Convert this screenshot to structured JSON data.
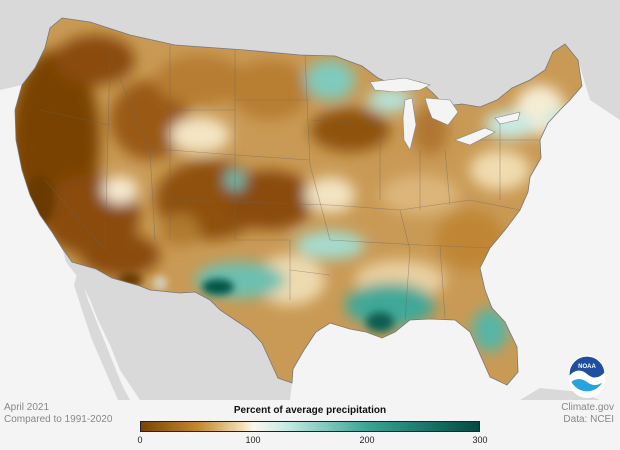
{
  "caption": {
    "date": "April 2021",
    "comparison": "Compared to 1991-2020",
    "credit_site": "Climate.gov",
    "credit_data": "Data: NCEI"
  },
  "legend": {
    "title": "Percent of average precipitation",
    "ticks": [
      "0",
      "100",
      "200",
      "300"
    ],
    "stops": [
      {
        "value": 0,
        "color": "#7a4306"
      },
      {
        "value": 50,
        "color": "#c4892f"
      },
      {
        "value": 90,
        "color": "#f2dfb6"
      },
      {
        "value": 100,
        "color": "#fbf8ef"
      },
      {
        "value": 130,
        "color": "#c4ebe3"
      },
      {
        "value": 200,
        "color": "#3aa596"
      },
      {
        "value": 300,
        "color": "#014a41"
      }
    ]
  },
  "logo": {
    "text": "NOAA"
  },
  "colors": {
    "background": "#f4f4f4",
    "land_gray": "#d9d9d9",
    "ocean": "#f4f4f4",
    "dry_dark": "#7a4306",
    "wet_dark": "#014a41"
  }
}
